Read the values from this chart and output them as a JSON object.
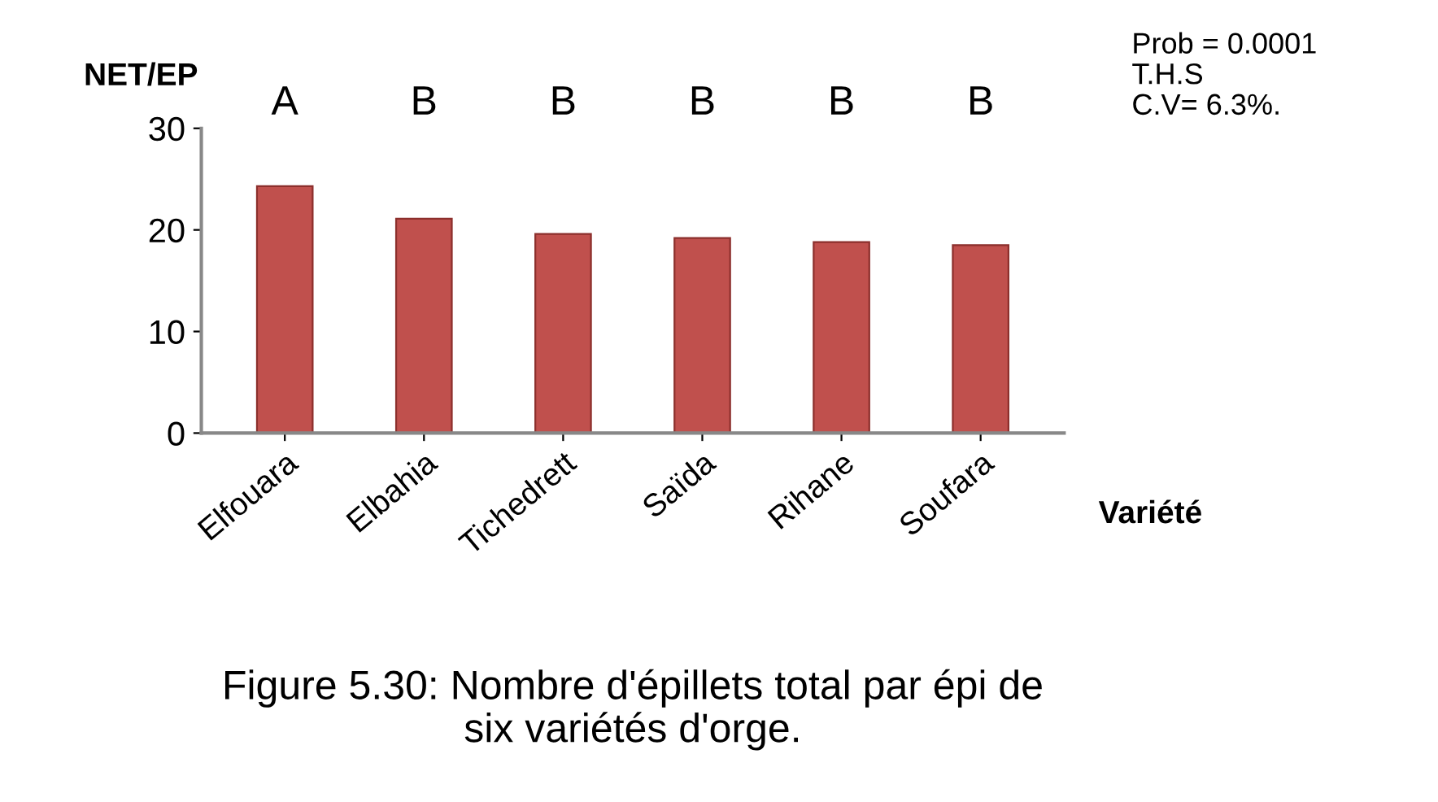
{
  "chart_data": {
    "type": "bar",
    "ylabel": "NET/EP",
    "xlabel": "Variété",
    "categories": [
      "Elfouara",
      "Elbahia",
      "Tichedrett",
      "Saïda",
      "Rihane",
      "Soufara"
    ],
    "values": [
      24.3,
      21.1,
      19.6,
      19.2,
      18.8,
      18.5
    ],
    "color": "#c0504d",
    "ylim": [
      0,
      30
    ],
    "yticks": [
      0,
      10,
      20,
      30
    ],
    "grid": false,
    "annotations": [
      "A",
      "B",
      "B",
      "B",
      "B",
      "B",
      "Prob = 0.0001\nT.H.S\nC.V= 6.3%.",
      "Figure 5.30: Nombre d'épillets total par épi de\nsix variétés d'orge."
    ]
  }
}
